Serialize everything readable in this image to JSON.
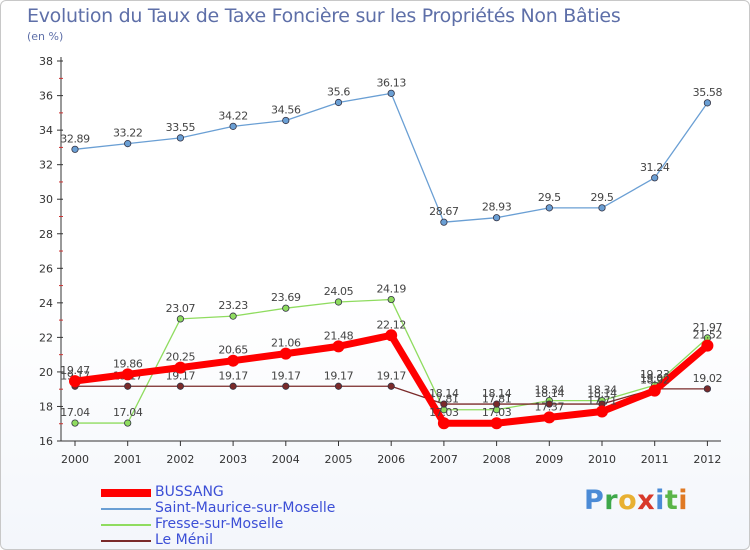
{
  "title": "Evolution du Taux de Taxe Foncière sur les Propriétés Non Bâties",
  "subtitle": "(en %)",
  "logo": {
    "text": "Proxiti"
  },
  "colors": {
    "BUSSANG": "#ff0000",
    "Saint-Maurice-sur-Moselle": "#6a9fd4",
    "Fresse-sur-Moselle": "#8fdc5f",
    "Le Ménil": "#7a2a2a"
  },
  "chart_data": {
    "type": "line",
    "title": "Evolution du Taux de Taxe Foncière sur les Propriétés Non Bâties",
    "ylabel": "(en %)",
    "xlabel": "",
    "ylim": [
      16,
      38
    ],
    "yticks": [
      16,
      18,
      20,
      22,
      24,
      26,
      28,
      30,
      32,
      34,
      36,
      38
    ],
    "x": [
      "2000",
      "2001",
      "2002",
      "2003",
      "2004",
      "2005",
      "2006",
      "2007",
      "2008",
      "2009",
      "2010",
      "2011",
      "2012"
    ],
    "grid": false,
    "legend": "bottom-left",
    "series": [
      {
        "name": "Saint-Maurice-sur-Moselle",
        "values": [
          32.89,
          33.22,
          33.55,
          34.22,
          34.56,
          35.6,
          36.13,
          28.67,
          28.93,
          29.5,
          29.5,
          31.24,
          35.58
        ],
        "labels": [
          "32.89",
          "33.22",
          "33.55",
          "34.22",
          "34.56",
          "35.6",
          "36.13",
          "28.67",
          "28.93",
          "29.5",
          "29.5",
          "31.24",
          "35.58"
        ]
      },
      {
        "name": "Fresse-sur-Moselle",
        "values": [
          17.04,
          17.04,
          23.07,
          23.23,
          23.69,
          24.05,
          24.19,
          17.81,
          17.81,
          18.34,
          18.34,
          19.23,
          21.97
        ],
        "labels": [
          "17.04",
          "17.04",
          "23.07",
          "23.23",
          "23.69",
          "24.05",
          "24.19",
          "17.81",
          "17.81",
          "18.34",
          "18.34",
          "19.23",
          "21.97"
        ]
      },
      {
        "name": "Le Ménil",
        "values": [
          19.17,
          19.17,
          19.17,
          19.17,
          19.17,
          19.17,
          19.17,
          18.14,
          18.14,
          18.14,
          18.14,
          19.02,
          19.02
        ],
        "labels": [
          "19.17",
          "19.17",
          "19.17",
          "19.17",
          "19.17",
          "19.17",
          "19.17",
          "18.14",
          "18.14",
          "18.14",
          "18.14",
          "19.02",
          "19.02"
        ]
      },
      {
        "name": "BUSSANG",
        "values": [
          19.47,
          19.86,
          20.25,
          20.65,
          21.06,
          21.48,
          22.12,
          17.03,
          17.03,
          17.37,
          17.71,
          18.92,
          21.52
        ],
        "labels": [
          "19.47",
          "19.86",
          "20.25",
          "20.65",
          "21.06",
          "21.48",
          "22.12",
          "17.03",
          "17.03",
          "17.37",
          "17.71",
          "18.92",
          "21.52"
        ]
      }
    ]
  }
}
